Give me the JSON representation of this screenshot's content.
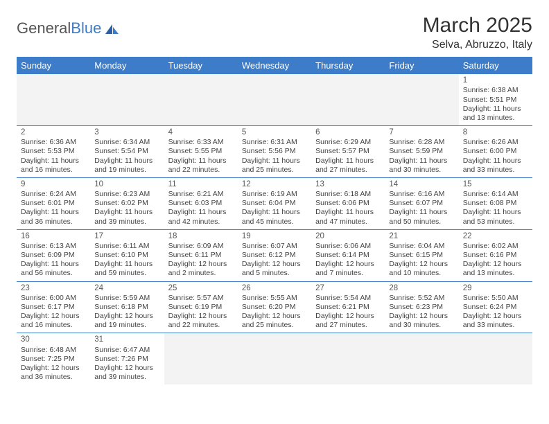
{
  "logo": {
    "text1": "General",
    "text2": "Blue"
  },
  "title": "March 2025",
  "location": "Selva, Abruzzo, Italy",
  "colors": {
    "header_bg": "#3d7cc9",
    "header_text": "#ffffff",
    "border": "#3d7cc9",
    "empty_bg": "#f3f3f3",
    "body_text": "#444444",
    "page_bg": "#ffffff"
  },
  "typography": {
    "title_fontsize": 30,
    "location_fontsize": 16,
    "dayheader_fontsize": 13,
    "cell_fontsize": 10.5,
    "daynum_fontsize": 11.5
  },
  "day_headers": [
    "Sunday",
    "Monday",
    "Tuesday",
    "Wednesday",
    "Thursday",
    "Friday",
    "Saturday"
  ],
  "weeks": [
    [
      null,
      null,
      null,
      null,
      null,
      null,
      {
        "n": "1",
        "sunrise": "Sunrise: 6:38 AM",
        "sunset": "Sunset: 5:51 PM",
        "daylight": "Daylight: 11 hours and 13 minutes."
      }
    ],
    [
      {
        "n": "2",
        "sunrise": "Sunrise: 6:36 AM",
        "sunset": "Sunset: 5:53 PM",
        "daylight": "Daylight: 11 hours and 16 minutes."
      },
      {
        "n": "3",
        "sunrise": "Sunrise: 6:34 AM",
        "sunset": "Sunset: 5:54 PM",
        "daylight": "Daylight: 11 hours and 19 minutes."
      },
      {
        "n": "4",
        "sunrise": "Sunrise: 6:33 AM",
        "sunset": "Sunset: 5:55 PM",
        "daylight": "Daylight: 11 hours and 22 minutes."
      },
      {
        "n": "5",
        "sunrise": "Sunrise: 6:31 AM",
        "sunset": "Sunset: 5:56 PM",
        "daylight": "Daylight: 11 hours and 25 minutes."
      },
      {
        "n": "6",
        "sunrise": "Sunrise: 6:29 AM",
        "sunset": "Sunset: 5:57 PM",
        "daylight": "Daylight: 11 hours and 27 minutes."
      },
      {
        "n": "7",
        "sunrise": "Sunrise: 6:28 AM",
        "sunset": "Sunset: 5:59 PM",
        "daylight": "Daylight: 11 hours and 30 minutes."
      },
      {
        "n": "8",
        "sunrise": "Sunrise: 6:26 AM",
        "sunset": "Sunset: 6:00 PM",
        "daylight": "Daylight: 11 hours and 33 minutes."
      }
    ],
    [
      {
        "n": "9",
        "sunrise": "Sunrise: 6:24 AM",
        "sunset": "Sunset: 6:01 PM",
        "daylight": "Daylight: 11 hours and 36 minutes."
      },
      {
        "n": "10",
        "sunrise": "Sunrise: 6:23 AM",
        "sunset": "Sunset: 6:02 PM",
        "daylight": "Daylight: 11 hours and 39 minutes."
      },
      {
        "n": "11",
        "sunrise": "Sunrise: 6:21 AM",
        "sunset": "Sunset: 6:03 PM",
        "daylight": "Daylight: 11 hours and 42 minutes."
      },
      {
        "n": "12",
        "sunrise": "Sunrise: 6:19 AM",
        "sunset": "Sunset: 6:04 PM",
        "daylight": "Daylight: 11 hours and 45 minutes."
      },
      {
        "n": "13",
        "sunrise": "Sunrise: 6:18 AM",
        "sunset": "Sunset: 6:06 PM",
        "daylight": "Daylight: 11 hours and 47 minutes."
      },
      {
        "n": "14",
        "sunrise": "Sunrise: 6:16 AM",
        "sunset": "Sunset: 6:07 PM",
        "daylight": "Daylight: 11 hours and 50 minutes."
      },
      {
        "n": "15",
        "sunrise": "Sunrise: 6:14 AM",
        "sunset": "Sunset: 6:08 PM",
        "daylight": "Daylight: 11 hours and 53 minutes."
      }
    ],
    [
      {
        "n": "16",
        "sunrise": "Sunrise: 6:13 AM",
        "sunset": "Sunset: 6:09 PM",
        "daylight": "Daylight: 11 hours and 56 minutes."
      },
      {
        "n": "17",
        "sunrise": "Sunrise: 6:11 AM",
        "sunset": "Sunset: 6:10 PM",
        "daylight": "Daylight: 11 hours and 59 minutes."
      },
      {
        "n": "18",
        "sunrise": "Sunrise: 6:09 AM",
        "sunset": "Sunset: 6:11 PM",
        "daylight": "Daylight: 12 hours and 2 minutes."
      },
      {
        "n": "19",
        "sunrise": "Sunrise: 6:07 AM",
        "sunset": "Sunset: 6:12 PM",
        "daylight": "Daylight: 12 hours and 5 minutes."
      },
      {
        "n": "20",
        "sunrise": "Sunrise: 6:06 AM",
        "sunset": "Sunset: 6:14 PM",
        "daylight": "Daylight: 12 hours and 7 minutes."
      },
      {
        "n": "21",
        "sunrise": "Sunrise: 6:04 AM",
        "sunset": "Sunset: 6:15 PM",
        "daylight": "Daylight: 12 hours and 10 minutes."
      },
      {
        "n": "22",
        "sunrise": "Sunrise: 6:02 AM",
        "sunset": "Sunset: 6:16 PM",
        "daylight": "Daylight: 12 hours and 13 minutes."
      }
    ],
    [
      {
        "n": "23",
        "sunrise": "Sunrise: 6:00 AM",
        "sunset": "Sunset: 6:17 PM",
        "daylight": "Daylight: 12 hours and 16 minutes."
      },
      {
        "n": "24",
        "sunrise": "Sunrise: 5:59 AM",
        "sunset": "Sunset: 6:18 PM",
        "daylight": "Daylight: 12 hours and 19 minutes."
      },
      {
        "n": "25",
        "sunrise": "Sunrise: 5:57 AM",
        "sunset": "Sunset: 6:19 PM",
        "daylight": "Daylight: 12 hours and 22 minutes."
      },
      {
        "n": "26",
        "sunrise": "Sunrise: 5:55 AM",
        "sunset": "Sunset: 6:20 PM",
        "daylight": "Daylight: 12 hours and 25 minutes."
      },
      {
        "n": "27",
        "sunrise": "Sunrise: 5:54 AM",
        "sunset": "Sunset: 6:21 PM",
        "daylight": "Daylight: 12 hours and 27 minutes."
      },
      {
        "n": "28",
        "sunrise": "Sunrise: 5:52 AM",
        "sunset": "Sunset: 6:23 PM",
        "daylight": "Daylight: 12 hours and 30 minutes."
      },
      {
        "n": "29",
        "sunrise": "Sunrise: 5:50 AM",
        "sunset": "Sunset: 6:24 PM",
        "daylight": "Daylight: 12 hours and 33 minutes."
      }
    ],
    [
      {
        "n": "30",
        "sunrise": "Sunrise: 6:48 AM",
        "sunset": "Sunset: 7:25 PM",
        "daylight": "Daylight: 12 hours and 36 minutes."
      },
      {
        "n": "31",
        "sunrise": "Sunrise: 6:47 AM",
        "sunset": "Sunset: 7:26 PM",
        "daylight": "Daylight: 12 hours and 39 minutes."
      },
      null,
      null,
      null,
      null,
      null
    ]
  ]
}
